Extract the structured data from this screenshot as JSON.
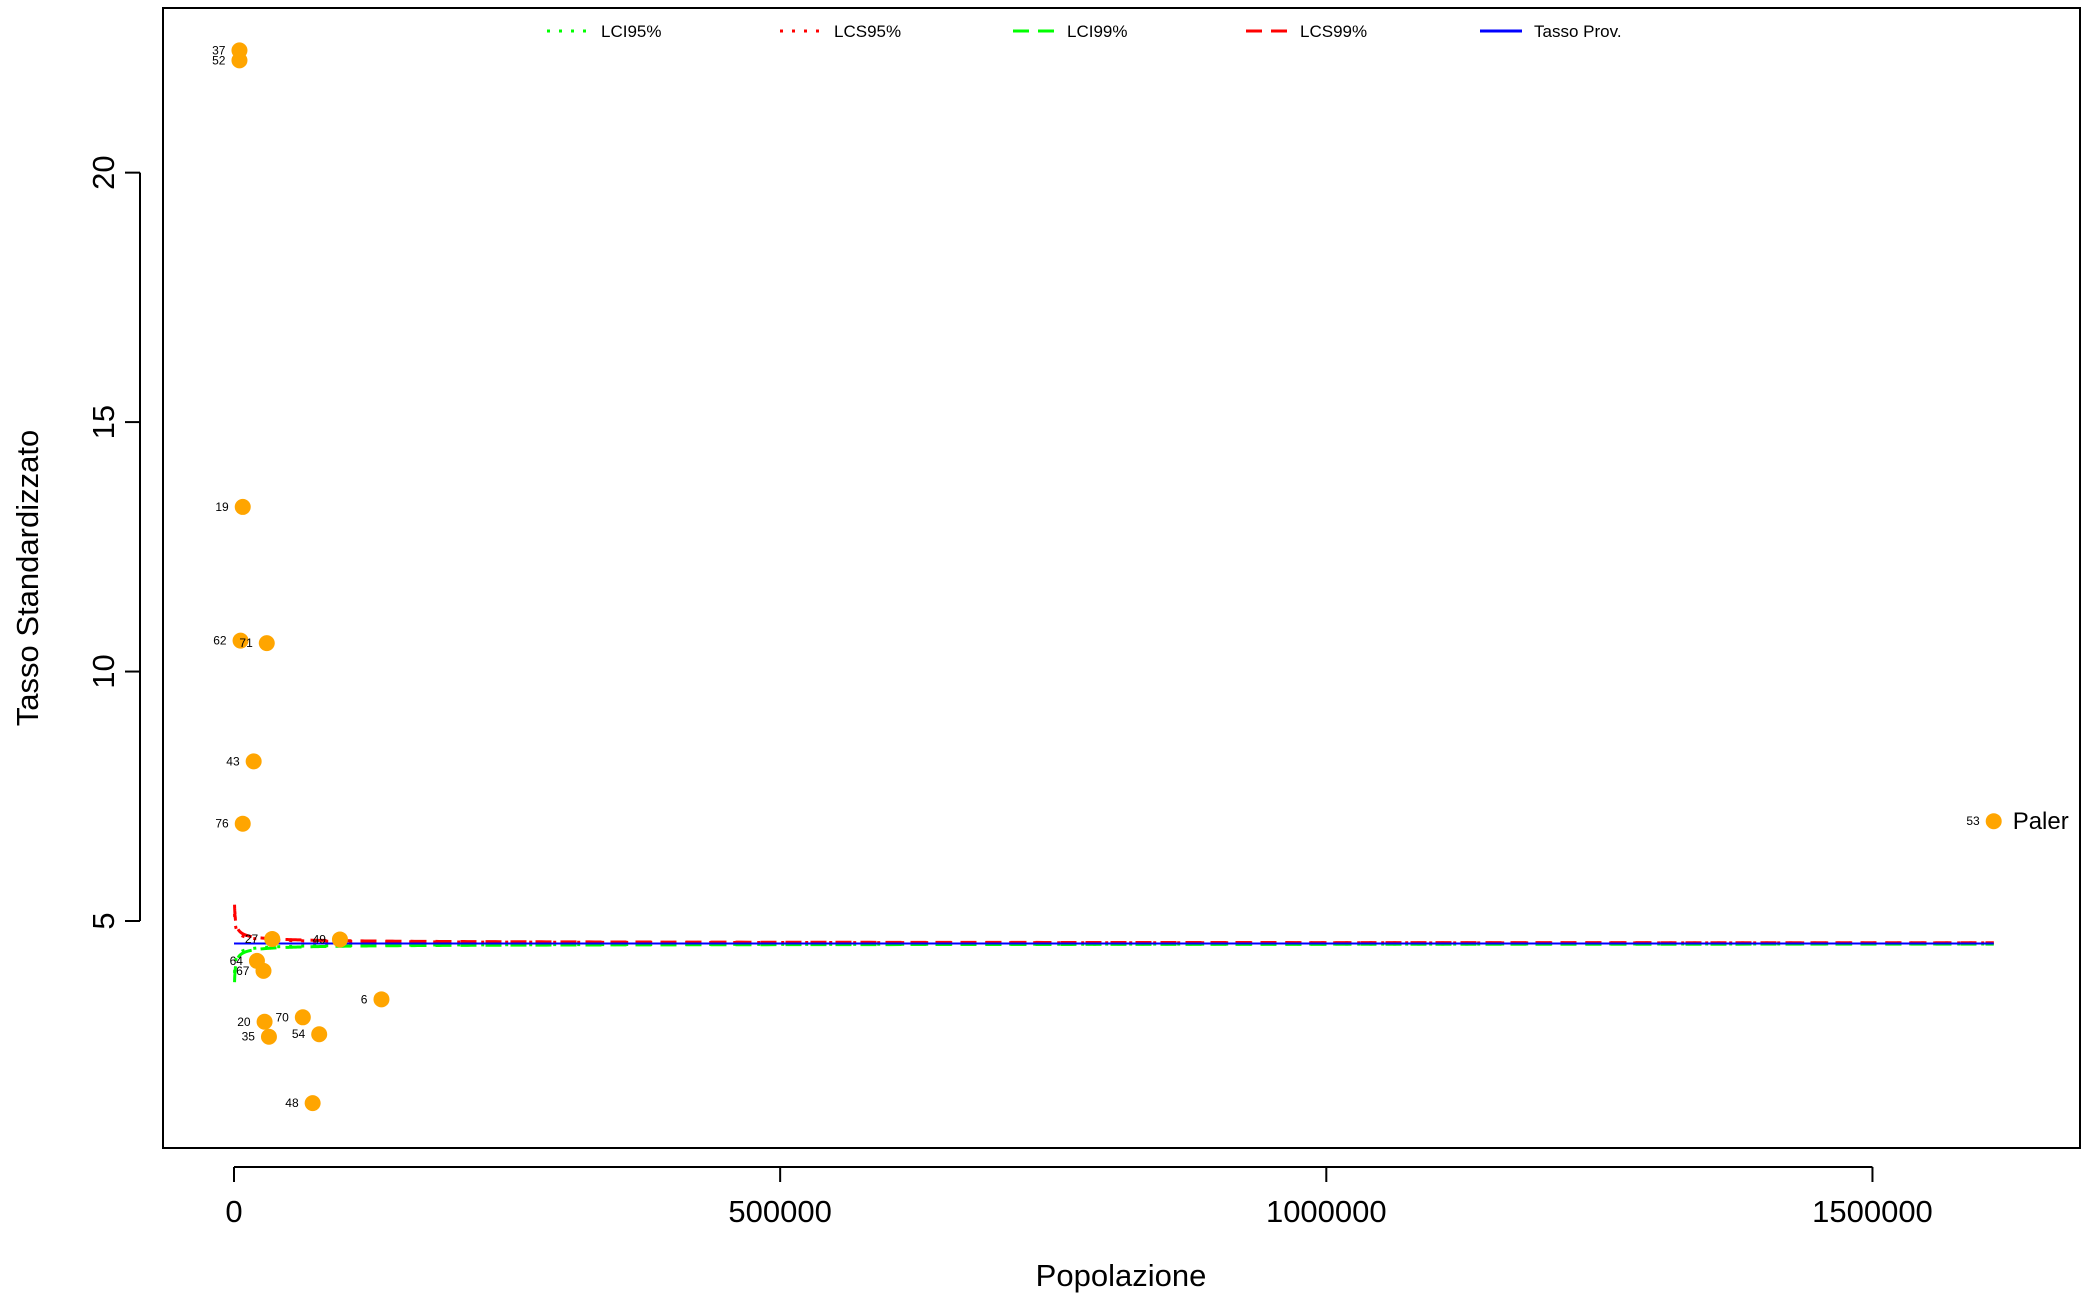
{
  "chart_data": {
    "type": "scatter",
    "title": "",
    "xlabel": "Popolazione",
    "ylabel": "Tasso Standardizzato",
    "xlim": [
      -65000,
      1690000
    ],
    "ylim": [
      0.45,
      23.3
    ],
    "x_ticks": [
      {
        "value": 0,
        "label": "0"
      },
      {
        "value": 500000,
        "label": "500000"
      },
      {
        "value": 1000000,
        "label": "1000000"
      },
      {
        "value": 1500000,
        "label": "1500000"
      }
    ],
    "y_ticks": [
      {
        "value": 5,
        "label": "5"
      },
      {
        "value": 10,
        "label": "10"
      },
      {
        "value": 15,
        "label": "15"
      },
      {
        "value": 20,
        "label": "20"
      }
    ],
    "grid": false,
    "legend_position": "top",
    "provincial_rate": 4.55,
    "max_population": 1611000,
    "legend": [
      {
        "label": "LCI95%",
        "color": "#00ff00",
        "style": "dotted"
      },
      {
        "label": "LCS95%",
        "color": "#ff0000",
        "style": "dotted"
      },
      {
        "label": "LCI99%",
        "color": "#00ff00",
        "style": "dashed"
      },
      {
        "label": "LCS99%",
        "color": "#ff0000",
        "style": "dashed"
      },
      {
        "label": "Tasso Prov.",
        "color": "#0000ff",
        "style": "solid"
      }
    ],
    "bands": [
      {
        "name": "LCI95%",
        "z": -1.96,
        "side": "lower",
        "color": "#00ff00",
        "style": "dotted"
      },
      {
        "name": "LCS95%",
        "z": 1.96,
        "side": "upper",
        "color": "#ff0000",
        "style": "dotted"
      },
      {
        "name": "LCI99%",
        "z": -2.576,
        "side": "lower",
        "color": "#00ff00",
        "style": "dashed"
      },
      {
        "name": "LCS99%",
        "z": 2.576,
        "side": "upper",
        "color": "#ff0000",
        "style": "dashed"
      }
    ],
    "point_color": "#ffa500",
    "points": [
      {
        "id": "37",
        "x": 5000,
        "y": 22.45
      },
      {
        "id": "52",
        "x": 5000,
        "y": 22.25
      },
      {
        "id": "19",
        "x": 8000,
        "y": 13.3
      },
      {
        "id": "62",
        "x": 6000,
        "y": 10.62
      },
      {
        "id": "71",
        "x": 30000,
        "y": 10.57
      },
      {
        "id": "43",
        "x": 18000,
        "y": 8.2
      },
      {
        "id": "76",
        "x": 8000,
        "y": 6.95
      },
      {
        "id": "27",
        "x": 35000,
        "y": 4.64
      },
      {
        "id": "49",
        "x": 97000,
        "y": 4.63
      },
      {
        "id": "64",
        "x": 21000,
        "y": 4.2
      },
      {
        "id": "67",
        "x": 27000,
        "y": 4.0
      },
      {
        "id": "6",
        "x": 135000,
        "y": 3.43
      },
      {
        "id": "70",
        "x": 63000,
        "y": 3.07
      },
      {
        "id": "20",
        "x": 28000,
        "y": 2.98
      },
      {
        "id": "35",
        "x": 32000,
        "y": 2.68
      },
      {
        "id": "54",
        "x": 78000,
        "y": 2.73
      },
      {
        "id": "48",
        "x": 72000,
        "y": 1.35
      },
      {
        "id": "53",
        "x": 1611000,
        "y": 7.0,
        "name": "Paler"
      }
    ]
  }
}
